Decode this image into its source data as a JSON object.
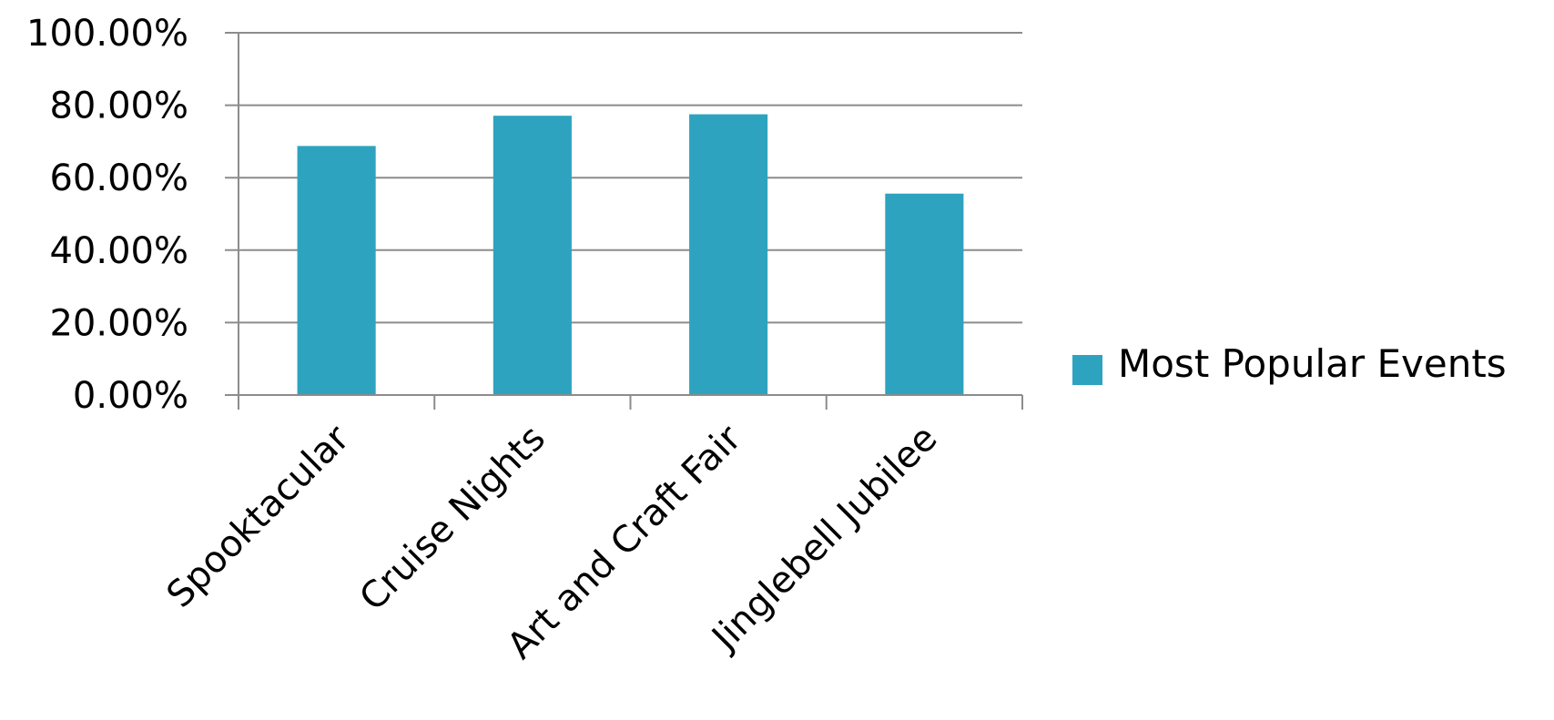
{
  "chart_data": {
    "type": "bar",
    "categories": [
      "Spooktacular",
      "Cruise Nights",
      "Art and Craft Fair",
      "Jinglebell Jubilee"
    ],
    "series": [
      {
        "name": "Most Popular Events",
        "values": [
          68.75,
          77.1,
          77.5,
          55.6
        ],
        "color": "#2ea3bf"
      }
    ],
    "y_tick_labels": [
      "0.00%",
      "20.00%",
      "40.00%",
      "60.00%",
      "80.00%",
      "100.00%"
    ],
    "ylim": [
      0,
      100
    ],
    "grid": "horizontal",
    "legend_placement": "right",
    "gridline_color": "#8c8c8c",
    "title": "",
    "xlabel": "",
    "ylabel": ""
  }
}
